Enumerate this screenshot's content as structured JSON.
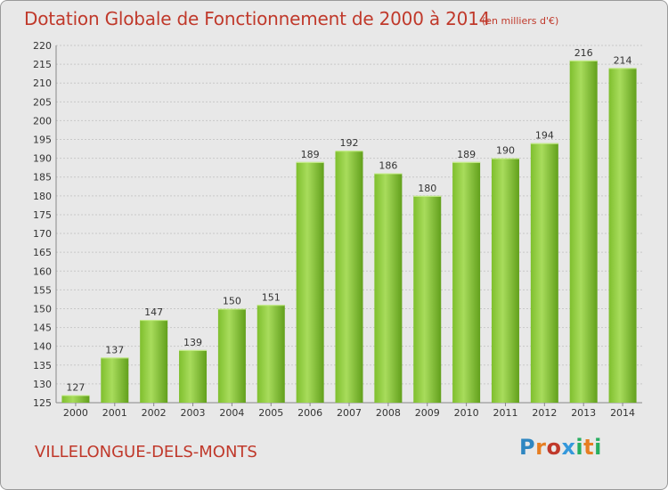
{
  "title": "Dotation Globale de Fonctionnement de 2000 à 2014",
  "subtitle": "(en milliers d'€)",
  "commune": "VILLELONGUE-DELS-MONTS",
  "logo": {
    "letters": [
      "P",
      "r",
      "o",
      "x",
      "i",
      "t",
      "i"
    ],
    "colors": [
      "#2e86c1",
      "#e67e22",
      "#c0392b",
      "#3498db",
      "#27ae60",
      "#e67e22",
      "#27ae60"
    ]
  },
  "colors": {
    "bar_light": "#a8dc5c",
    "bar_dark": "#62a01c",
    "text_accent": "#c0392b"
  },
  "chart_data": {
    "type": "bar",
    "title": "Dotation Globale de Fonctionnement de 2000 à 2014",
    "subtitle": "(en milliers d'€)",
    "categories": [
      "2000",
      "2001",
      "2002",
      "2003",
      "2004",
      "2005",
      "2006",
      "2007",
      "2008",
      "2009",
      "2010",
      "2011",
      "2012",
      "2013",
      "2014"
    ],
    "values": [
      127,
      137,
      147,
      139,
      150,
      151,
      189,
      192,
      186,
      180,
      189,
      190,
      194,
      216,
      214
    ],
    "ylim": [
      125,
      220
    ],
    "yticks": [
      125,
      130,
      135,
      140,
      145,
      150,
      155,
      160,
      165,
      170,
      175,
      180,
      185,
      190,
      195,
      200,
      205,
      210,
      215,
      220
    ],
    "grid": true,
    "xlabel": "",
    "ylabel": ""
  }
}
